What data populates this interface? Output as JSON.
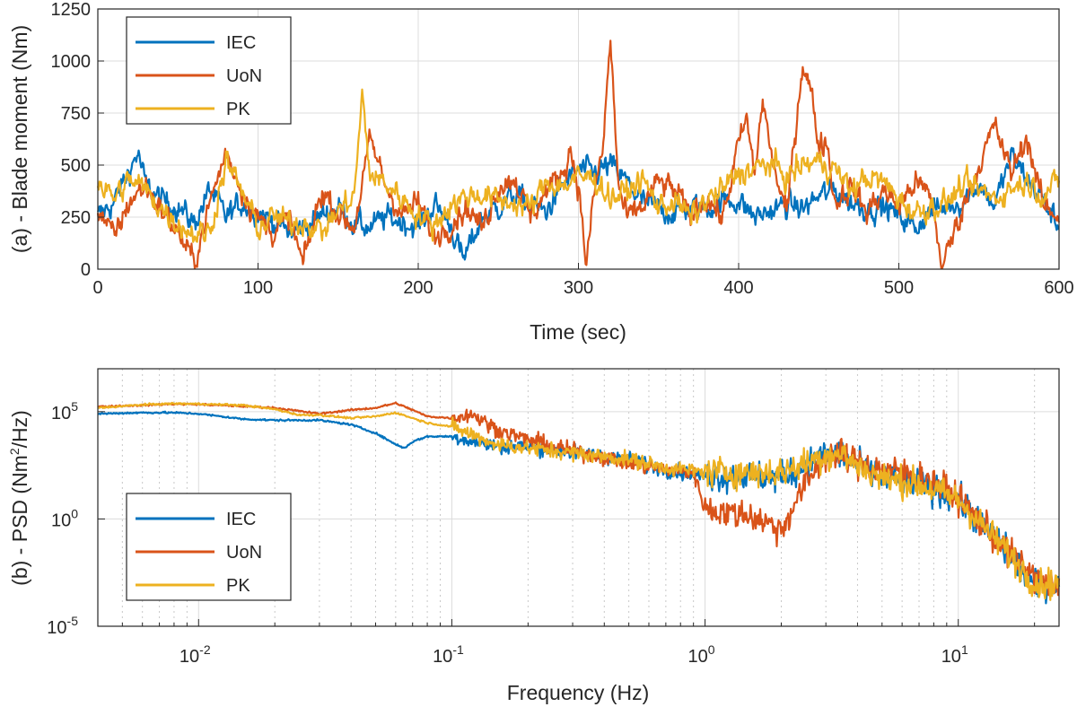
{
  "chart_data": [
    {
      "panel": "a",
      "type": "line",
      "xlabel": "Time (sec)",
      "ylabel": "(a) - Blade moment (Nm)",
      "xlim": [
        0,
        600
      ],
      "ylim": [
        0,
        1250
      ],
      "xticks": [
        0,
        100,
        200,
        300,
        400,
        500,
        600
      ],
      "xtick_labels": [
        "0",
        "100",
        "200",
        "300",
        "400",
        "500",
        "600"
      ],
      "yticks": [
        0,
        250,
        500,
        750,
        1000,
        1250
      ],
      "ytick_labels": [
        "0",
        "250",
        "500",
        "750",
        "1000",
        "1250"
      ],
      "grid": true,
      "legend_position": "top-left",
      "series": [
        {
          "name": "IEC",
          "color": "#0072BD",
          "x": [
            0,
            10,
            20,
            25,
            30,
            40,
            50,
            60,
            70,
            80,
            90,
            100,
            110,
            120,
            130,
            140,
            150,
            160,
            170,
            180,
            190,
            200,
            210,
            220,
            228,
            240,
            250,
            260,
            270,
            280,
            290,
            300,
            310,
            320,
            330,
            340,
            350,
            360,
            370,
            380,
            390,
            400,
            410,
            420,
            430,
            440,
            450,
            460,
            470,
            480,
            490,
            500,
            510,
            520,
            530,
            540,
            550,
            560,
            570,
            580,
            590,
            600
          ],
          "y": [
            250,
            320,
            480,
            560,
            400,
            330,
            300,
            220,
            380,
            250,
            320,
            280,
            230,
            170,
            210,
            260,
            300,
            220,
            200,
            250,
            230,
            200,
            310,
            220,
            40,
            250,
            300,
            360,
            300,
            280,
            400,
            480,
            460,
            500,
            420,
            320,
            290,
            270,
            300,
            290,
            330,
            330,
            250,
            280,
            310,
            290,
            350,
            380,
            320,
            290,
            300,
            260,
            200,
            280,
            300,
            330,
            410,
            310,
            540,
            440,
            330,
            200
          ]
        },
        {
          "name": "UoN",
          "color": "#D95319",
          "x": [
            0,
            10,
            20,
            30,
            40,
            50,
            60,
            70,
            80,
            90,
            100,
            110,
            120,
            128,
            140,
            150,
            160,
            170,
            180,
            190,
            200,
            210,
            220,
            230,
            240,
            250,
            260,
            270,
            280,
            290,
            295,
            300,
            305,
            310,
            315,
            320,
            325,
            330,
            340,
            350,
            360,
            370,
            380,
            390,
            400,
            405,
            410,
            415,
            420,
            430,
            435,
            440,
            445,
            450,
            455,
            460,
            470,
            480,
            490,
            500,
            510,
            520,
            527,
            540,
            550,
            560,
            570,
            580,
            590,
            600
          ],
          "y": [
            300,
            150,
            330,
            400,
            280,
            180,
            30,
            320,
            560,
            380,
            240,
            180,
            240,
            20,
            380,
            270,
            200,
            620,
            400,
            260,
            320,
            150,
            220,
            300,
            200,
            400,
            440,
            250,
            380,
            460,
            580,
            400,
            20,
            380,
            560,
            1100,
            400,
            240,
            300,
            420,
            380,
            250,
            350,
            240,
            600,
            720,
            450,
            820,
            560,
            250,
            640,
            1000,
            860,
            600,
            620,
            320,
            400,
            270,
            380,
            300,
            420,
            350,
            10,
            300,
            500,
            690,
            460,
            640,
            300,
            260
          ]
        },
        {
          "name": "PK",
          "color": "#EDB120",
          "x": [
            0,
            10,
            20,
            30,
            40,
            50,
            60,
            70,
            80,
            90,
            100,
            110,
            120,
            130,
            140,
            150,
            160,
            165,
            170,
            180,
            190,
            200,
            210,
            220,
            230,
            240,
            250,
            260,
            270,
            280,
            290,
            300,
            310,
            320,
            330,
            340,
            350,
            360,
            370,
            380,
            390,
            400,
            410,
            420,
            430,
            440,
            450,
            460,
            470,
            480,
            490,
            500,
            510,
            520,
            530,
            540,
            550,
            560,
            570,
            580,
            590,
            600
          ],
          "y": [
            420,
            340,
            430,
            380,
            290,
            220,
            170,
            180,
            520,
            370,
            200,
            250,
            220,
            230,
            180,
            280,
            350,
            830,
            450,
            410,
            340,
            260,
            210,
            310,
            350,
            360,
            330,
            320,
            290,
            420,
            400,
            440,
            440,
            340,
            370,
            430,
            300,
            330,
            250,
            330,
            380,
            460,
            480,
            510,
            440,
            500,
            520,
            480,
            380,
            440,
            420,
            340,
            270,
            300,
            320,
            400,
            380,
            340,
            390,
            420,
            360,
            420
          ]
        }
      ]
    },
    {
      "panel": "b",
      "type": "line",
      "xscale": "log",
      "yscale": "log",
      "xlabel": "Frequency (Hz)",
      "ylabel_prefix": "(b) - PSD (Nm",
      "ylabel_sup": "2",
      "ylabel_suffix": "/Hz)",
      "xlim": [
        0.004,
        25
      ],
      "ylim": [
        1e-05,
        10000000.0
      ],
      "xticks": [
        0.01,
        0.1,
        1,
        10
      ],
      "xtick_base": "10",
      "xtick_exps": [
        "-2",
        "-1",
        "0",
        "1"
      ],
      "yticks": [
        1e-05,
        1,
        100000.0
      ],
      "ytick_base": "10",
      "ytick_exps": [
        "-5",
        "0",
        "5"
      ],
      "grid": true,
      "legend_position": "bottom-left",
      "series": [
        {
          "name": "IEC",
          "color": "#0072BD",
          "x": [
            0.004,
            0.006,
            0.008,
            0.01,
            0.015,
            0.02,
            0.03,
            0.04,
            0.05,
            0.06,
            0.065,
            0.07,
            0.08,
            0.1,
            0.15,
            0.2,
            0.3,
            0.5,
            0.7,
            1,
            1.5,
            2,
            2.5,
            3,
            3.5,
            4,
            5,
            7,
            10,
            13,
            15,
            20,
            25
          ],
          "y": [
            80000,
            90000,
            90000,
            80000,
            45000,
            40000,
            40000,
            25000,
            10000,
            3000,
            2000,
            4000,
            7000,
            7000,
            2500,
            2500,
            1300,
            600,
            200,
            100,
            100,
            80,
            300,
            1000,
            1000,
            300,
            80,
            40,
            10,
            0.3,
            0.05,
            0.0008,
            0.001
          ]
        },
        {
          "name": "UoN",
          "color": "#D95319",
          "x": [
            0.004,
            0.006,
            0.008,
            0.01,
            0.015,
            0.02,
            0.03,
            0.04,
            0.05,
            0.06,
            0.07,
            0.08,
            0.1,
            0.12,
            0.15,
            0.2,
            0.3,
            0.5,
            0.7,
            0.9,
            1,
            1.2,
            1.5,
            1.8,
            2,
            2.5,
            3,
            3.5,
            4,
            5,
            6,
            7,
            8,
            10,
            13,
            15,
            20,
            25
          ],
          "y": [
            170000,
            200000,
            230000,
            220000,
            180000,
            150000,
            80000,
            120000,
            150000,
            250000,
            120000,
            60000,
            50000,
            80000,
            15000,
            5000,
            1500,
            400,
            200,
            150,
            3,
            2,
            1.5,
            0.6,
            0.3,
            50,
            800,
            900,
            400,
            200,
            150,
            100,
            50,
            10,
            0.3,
            0.05,
            0.002,
            0.0005
          ]
        },
        {
          "name": "PK",
          "color": "#EDB120",
          "x": [
            0.004,
            0.006,
            0.008,
            0.01,
            0.015,
            0.02,
            0.025,
            0.03,
            0.04,
            0.05,
            0.06,
            0.07,
            0.08,
            0.1,
            0.15,
            0.2,
            0.3,
            0.5,
            0.7,
            1,
            1.5,
            2,
            2.5,
            3,
            3.5,
            4,
            5,
            7,
            10,
            13,
            15,
            20,
            25
          ],
          "y": [
            150000,
            210000,
            240000,
            230000,
            200000,
            130000,
            70000,
            70000,
            50000,
            60000,
            90000,
            50000,
            30000,
            20000,
            3000,
            2000,
            1200,
            600,
            250,
            150,
            150,
            150,
            400,
            1000,
            1000,
            300,
            80,
            40,
            8,
            0.3,
            0.05,
            0.001,
            0.001
          ]
        }
      ]
    }
  ]
}
